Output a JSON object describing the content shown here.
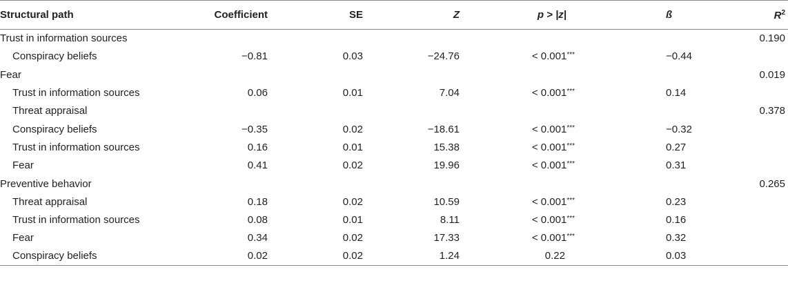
{
  "headers": {
    "path": "Structural path",
    "coef": "Coefficient",
    "se": "SE",
    "z": "Z",
    "p": "p > |z|",
    "beta": "ß",
    "r2_base": "R",
    "r2_sup": "2"
  },
  "rows": [
    {
      "label": "Trust in information sources",
      "indent": false,
      "coef": "",
      "se": "",
      "z": "",
      "p": "",
      "stars": "",
      "beta": "",
      "r2": "0.190"
    },
    {
      "label": "Conspiracy beliefs",
      "indent": true,
      "coef": "−0.81",
      "se": "0.03",
      "z": "−24.76",
      "p": "< 0.001",
      "stars": "***",
      "beta": "−0.44",
      "r2": ""
    },
    {
      "label": "Fear",
      "indent": false,
      "coef": "",
      "se": "",
      "z": "",
      "p": "",
      "stars": "",
      "beta": "",
      "r2": "0.019"
    },
    {
      "label": "Trust in information sources",
      "indent": true,
      "coef": "0.06",
      "se": "0.01",
      "z": "7.04",
      "p": "< 0.001",
      "stars": "***",
      "beta": "0.14",
      "r2": ""
    },
    {
      "label": "Threat appraisal",
      "indent": true,
      "coef": "",
      "se": "",
      "z": "",
      "p": "",
      "stars": "",
      "beta": "",
      "r2": "0.378"
    },
    {
      "label": "Conspiracy beliefs",
      "indent": true,
      "coef": "−0.35",
      "se": "0.02",
      "z": "−18.61",
      "p": "< 0.001",
      "stars": "***",
      "beta": "−0.32",
      "r2": ""
    },
    {
      "label": "Trust in information sources",
      "indent": true,
      "coef": "0.16",
      "se": "0.01",
      "z": "15.38",
      "p": "< 0.001",
      "stars": "***",
      "beta": "0.27",
      "r2": ""
    },
    {
      "label": "Fear",
      "indent": true,
      "coef": "0.41",
      "se": "0.02",
      "z": "19.96",
      "p": "< 0.001",
      "stars": "***",
      "beta": "0.31",
      "r2": ""
    },
    {
      "label": "Preventive behavior",
      "indent": false,
      "coef": "",
      "se": "",
      "z": "",
      "p": "",
      "stars": "",
      "beta": "",
      "r2": "0.265"
    },
    {
      "label": "Threat appraisal",
      "indent": true,
      "coef": "0.18",
      "se": "0.02",
      "z": "10.59",
      "p": "< 0.001",
      "stars": "***",
      "beta": "0.23",
      "r2": ""
    },
    {
      "label": "Trust in information sources",
      "indent": true,
      "coef": "0.08",
      "se": "0.01",
      "z": "8.11",
      "p": "< 0.001",
      "stars": "***",
      "beta": "0.16",
      "r2": ""
    },
    {
      "label": "Fear",
      "indent": true,
      "coef": "0.34",
      "se": "0.02",
      "z": "17.33",
      "p": "< 0.001",
      "stars": "***",
      "beta": "0.32",
      "r2": ""
    },
    {
      "label": "Conspiracy beliefs",
      "indent": true,
      "coef": "0.02",
      "se": "0.02",
      "z": "1.24",
      "p": "0.22",
      "stars": "",
      "beta": "0.03",
      "r2": ""
    }
  ]
}
